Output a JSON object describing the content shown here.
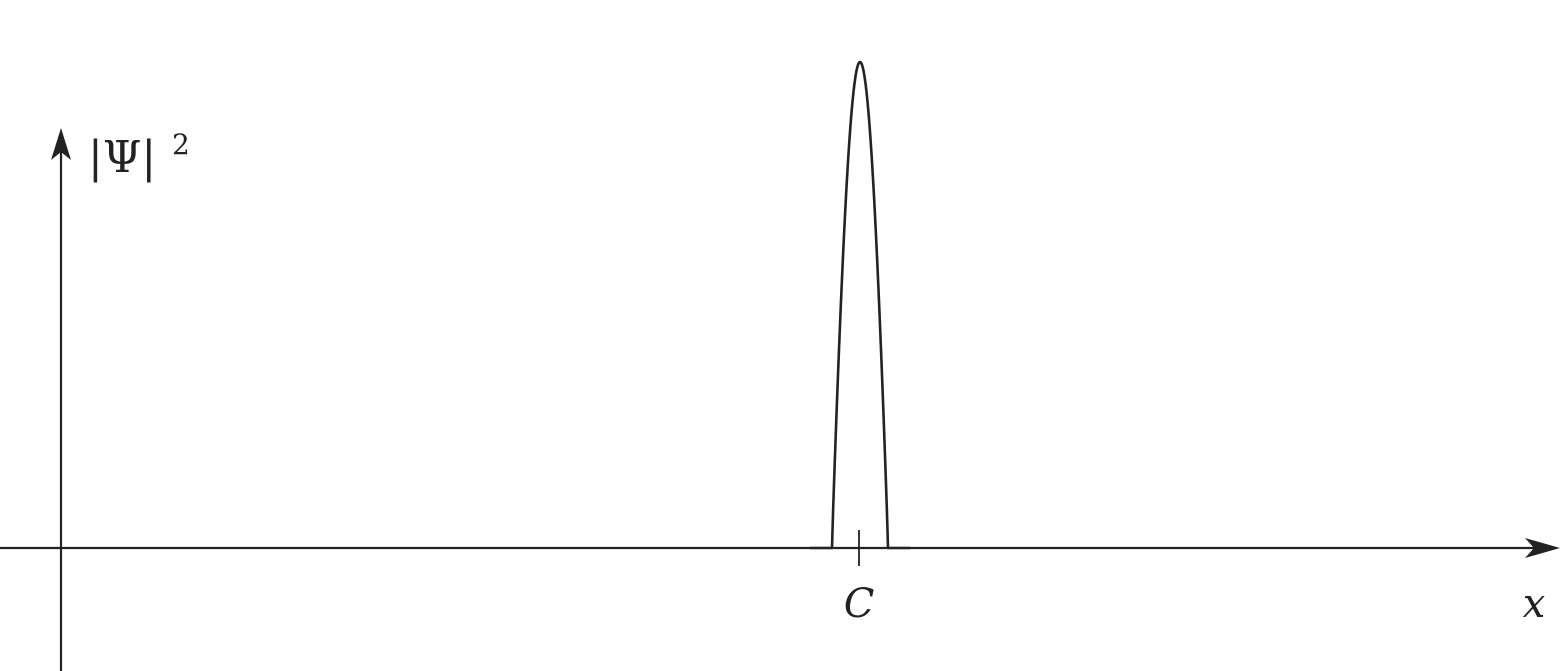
{
  "figure": {
    "y_axis_label": "|Ψ|",
    "y_axis_exponent": "2",
    "x_axis_label": "x",
    "peak_label": "C",
    "stroke_color": "#222222",
    "background_color": "#ffffff"
  }
}
